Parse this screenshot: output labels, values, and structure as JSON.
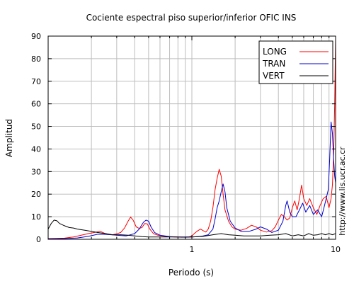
{
  "chart_data": {
    "type": "line",
    "title": "Cociente espectral piso superior/inferior  OFIC INS",
    "xlabel": "Periodo (s)",
    "ylabel": "Amplitud",
    "side_label": "http://www.lis.ucr.ac.cr",
    "x_scale": "log",
    "xlim": [
      0.1,
      10
    ],
    "ylim": [
      0,
      90
    ],
    "grid": true,
    "legend_position": "top-right",
    "x_ticks": [
      {
        "value": 1,
        "label": "1"
      },
      {
        "value": 10,
        "label": "10"
      }
    ],
    "y_ticks": [
      {
        "value": 0,
        "label": "0"
      },
      {
        "value": 10,
        "label": "10"
      },
      {
        "value": 20,
        "label": "20"
      },
      {
        "value": 30,
        "label": "30"
      },
      {
        "value": 40,
        "label": "40"
      },
      {
        "value": 50,
        "label": "50"
      },
      {
        "value": 60,
        "label": "60"
      },
      {
        "value": 70,
        "label": "70"
      },
      {
        "value": 80,
        "label": "80"
      },
      {
        "value": 90,
        "label": "90"
      }
    ],
    "series": [
      {
        "name": "LONG",
        "color": "#ff0000",
        "points": [
          [
            0.1,
            0.3
          ],
          [
            0.115,
            0.4
          ],
          [
            0.13,
            0.5
          ],
          [
            0.15,
            1.0
          ],
          [
            0.17,
            1.8
          ],
          [
            0.19,
            2.5
          ],
          [
            0.21,
            3.0
          ],
          [
            0.23,
            3.5
          ],
          [
            0.25,
            2.5
          ],
          [
            0.28,
            2.0
          ],
          [
            0.3,
            2.4
          ],
          [
            0.32,
            3.0
          ],
          [
            0.34,
            5.0
          ],
          [
            0.36,
            8.0
          ],
          [
            0.375,
            9.8
          ],
          [
            0.39,
            8.5
          ],
          [
            0.41,
            5.5
          ],
          [
            0.43,
            4.8
          ],
          [
            0.45,
            5.2
          ],
          [
            0.47,
            7.0
          ],
          [
            0.49,
            6.8
          ],
          [
            0.51,
            4.5
          ],
          [
            0.54,
            2.5
          ],
          [
            0.58,
            1.8
          ],
          [
            0.65,
            1.3
          ],
          [
            0.75,
            1.0
          ],
          [
            0.85,
            0.9
          ],
          [
            0.95,
            1.0
          ],
          [
            1.0,
            1.5
          ],
          [
            1.05,
            2.8
          ],
          [
            1.1,
            3.8
          ],
          [
            1.15,
            4.5
          ],
          [
            1.2,
            3.8
          ],
          [
            1.25,
            3.2
          ],
          [
            1.3,
            4.5
          ],
          [
            1.35,
            8.0
          ],
          [
            1.4,
            14
          ],
          [
            1.45,
            22
          ],
          [
            1.5,
            27
          ],
          [
            1.55,
            31
          ],
          [
            1.6,
            28
          ],
          [
            1.65,
            20
          ],
          [
            1.7,
            13
          ],
          [
            1.8,
            8.0
          ],
          [
            1.9,
            5.5
          ],
          [
            2.0,
            4.5
          ],
          [
            2.2,
            4.0
          ],
          [
            2.4,
            4.8
          ],
          [
            2.6,
            6.2
          ],
          [
            2.8,
            5.5
          ],
          [
            3.0,
            4.0
          ],
          [
            3.3,
            3.2
          ],
          [
            3.6,
            3.8
          ],
          [
            3.8,
            5.5
          ],
          [
            4.0,
            8.5
          ],
          [
            4.2,
            11
          ],
          [
            4.4,
            10
          ],
          [
            4.6,
            8.5
          ],
          [
            4.8,
            9.5
          ],
          [
            5.0,
            14
          ],
          [
            5.2,
            17
          ],
          [
            5.4,
            13
          ],
          [
            5.6,
            18
          ],
          [
            5.8,
            24
          ],
          [
            6.0,
            18
          ],
          [
            6.3,
            15
          ],
          [
            6.6,
            18
          ],
          [
            7.0,
            14
          ],
          [
            7.4,
            11
          ],
          [
            7.8,
            15
          ],
          [
            8.2,
            18
          ],
          [
            8.6,
            19
          ],
          [
            9.0,
            14
          ],
          [
            9.3,
            18
          ],
          [
            9.5,
            24
          ],
          [
            9.7,
            38
          ],
          [
            9.85,
            60
          ],
          [
            9.95,
            80
          ],
          [
            10.0,
            89
          ]
        ]
      },
      {
        "name": "TRAN",
        "color": "#0000cc",
        "points": [
          [
            0.1,
            0.2
          ],
          [
            0.13,
            0.3
          ],
          [
            0.16,
            0.6
          ],
          [
            0.19,
            1.3
          ],
          [
            0.22,
            2.2
          ],
          [
            0.25,
            2.2
          ],
          [
            0.3,
            1.8
          ],
          [
            0.35,
            1.5
          ],
          [
            0.4,
            2.5
          ],
          [
            0.43,
            4.5
          ],
          [
            0.46,
            7.5
          ],
          [
            0.48,
            8.5
          ],
          [
            0.5,
            8.0
          ],
          [
            0.52,
            5.5
          ],
          [
            0.55,
            3.0
          ],
          [
            0.6,
            1.8
          ],
          [
            0.7,
            1.2
          ],
          [
            0.8,
            1.0
          ],
          [
            0.9,
            0.9
          ],
          [
            1.0,
            1.0
          ],
          [
            1.1,
            1.2
          ],
          [
            1.2,
            1.5
          ],
          [
            1.3,
            2.0
          ],
          [
            1.4,
            4.5
          ],
          [
            1.45,
            9.0
          ],
          [
            1.5,
            14
          ],
          [
            1.55,
            17
          ],
          [
            1.6,
            21
          ],
          [
            1.65,
            24.5
          ],
          [
            1.7,
            21
          ],
          [
            1.75,
            14
          ],
          [
            1.85,
            8.0
          ],
          [
            2.0,
            5.0
          ],
          [
            2.2,
            3.5
          ],
          [
            2.5,
            3.5
          ],
          [
            2.8,
            4.5
          ],
          [
            3.0,
            5.5
          ],
          [
            3.3,
            4.5
          ],
          [
            3.6,
            3.0
          ],
          [
            4.0,
            4.0
          ],
          [
            4.3,
            8.0
          ],
          [
            4.5,
            15
          ],
          [
            4.6,
            17
          ],
          [
            4.8,
            12
          ],
          [
            5.0,
            10
          ],
          [
            5.3,
            10
          ],
          [
            5.6,
            13
          ],
          [
            5.9,
            16
          ],
          [
            6.2,
            12
          ],
          [
            6.6,
            15
          ],
          [
            7.0,
            11
          ],
          [
            7.5,
            13
          ],
          [
            8.0,
            10
          ],
          [
            8.3,
            14
          ],
          [
            8.6,
            18
          ],
          [
            8.9,
            22
          ],
          [
            9.1,
            36
          ],
          [
            9.3,
            52
          ],
          [
            9.5,
            47
          ],
          [
            9.7,
            35
          ],
          [
            9.85,
            28
          ],
          [
            10.0,
            25
          ]
        ]
      },
      {
        "name": "VERT",
        "color": "#000000",
        "points": [
          [
            0.1,
            4.5
          ],
          [
            0.105,
            7.0
          ],
          [
            0.11,
            8.5
          ],
          [
            0.115,
            8.2
          ],
          [
            0.12,
            7.0
          ],
          [
            0.13,
            6.0
          ],
          [
            0.14,
            5.2
          ],
          [
            0.15,
            5.0
          ],
          [
            0.16,
            4.5
          ],
          [
            0.18,
            4.0
          ],
          [
            0.2,
            3.5
          ],
          [
            0.22,
            3.0
          ],
          [
            0.25,
            2.5
          ],
          [
            0.28,
            2.0
          ],
          [
            0.32,
            2.0
          ],
          [
            0.36,
            1.8
          ],
          [
            0.4,
            1.5
          ],
          [
            0.45,
            1.2
          ],
          [
            0.5,
            1.0
          ],
          [
            0.6,
            1.0
          ],
          [
            0.7,
            1.0
          ],
          [
            0.8,
            1.0
          ],
          [
            1.0,
            1.0
          ],
          [
            1.2,
            1.3
          ],
          [
            1.4,
            2.0
          ],
          [
            1.6,
            2.5
          ],
          [
            1.8,
            2.0
          ],
          [
            2.0,
            1.8
          ],
          [
            2.3,
            1.5
          ],
          [
            2.6,
            1.5
          ],
          [
            3.0,
            1.5
          ],
          [
            3.5,
            1.8
          ],
          [
            4.0,
            2.0
          ],
          [
            4.5,
            2.5
          ],
          [
            5.0,
            1.5
          ],
          [
            5.5,
            2.0
          ],
          [
            6.0,
            1.5
          ],
          [
            6.5,
            2.5
          ],
          [
            7.0,
            1.8
          ],
          [
            7.5,
            2.0
          ],
          [
            8.0,
            2.5
          ],
          [
            8.5,
            2.0
          ],
          [
            9.0,
            2.5
          ],
          [
            9.5,
            2.0
          ],
          [
            10.0,
            2.5
          ]
        ]
      }
    ]
  }
}
